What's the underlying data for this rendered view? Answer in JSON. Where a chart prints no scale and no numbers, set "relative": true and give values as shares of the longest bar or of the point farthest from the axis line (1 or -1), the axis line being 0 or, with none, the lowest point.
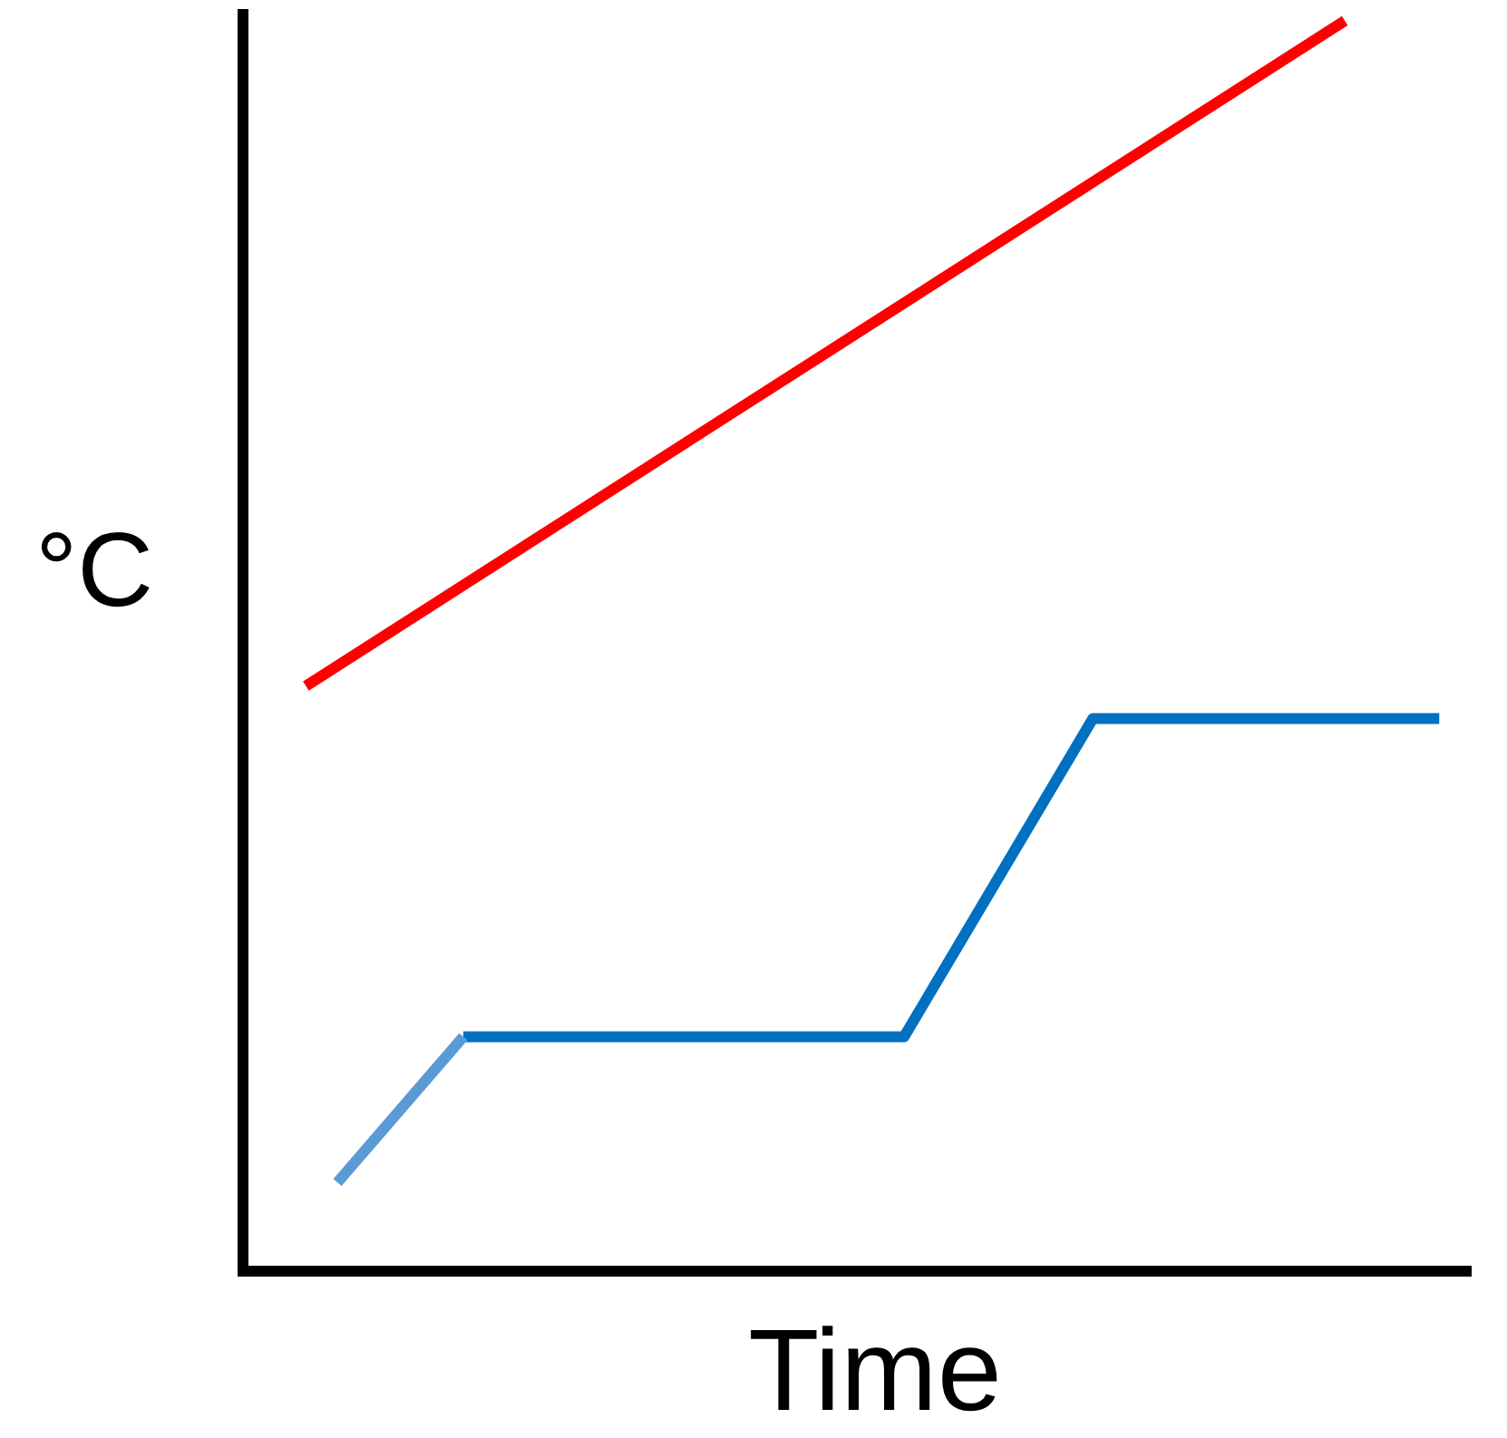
{
  "chart_data": {
    "type": "line",
    "xlabel": "Time",
    "ylabel": "°C",
    "relative": true,
    "tick_labels": false,
    "grid": false,
    "legend": false,
    "marker": "none",
    "line_style": "solid",
    "categories": [
      null,
      null,
      null,
      null,
      null,
      null,
      null,
      null,
      null,
      null,
      null,
      null,
      null,
      null,
      null,
      null,
      null,
      null,
      null,
      null,
      null,
      null,
      null,
      null,
      null,
      null,
      null,
      null,
      null,
      null,
      null,
      null,
      null,
      null,
      null,
      null,
      null,
      null,
      null,
      null
    ],
    "series": [
      {
        "color": "#ff0000",
        "values": [
          null,
          null,
          0.468,
          null,
          null,
          null,
          null,
          null,
          null,
          null,
          null,
          null,
          null,
          null,
          null,
          null,
          null,
          null,
          null,
          null,
          null,
          null,
          null,
          null,
          null,
          null,
          null,
          null,
          null,
          null,
          null,
          null,
          null,
          null,
          null,
          1,
          null,
          null,
          null,
          null
        ]
      },
      {
        "color": "#5b9bd5",
        "values": [
          null,
          null,
          null,
          0.071,
          null,
          null,
          null,
          0.1875,
          null,
          null,
          null,
          null,
          null,
          null,
          null,
          null,
          null,
          null,
          null,
          null,
          null,
          null,
          null,
          null,
          null,
          null,
          null,
          null,
          null,
          null,
          null,
          null,
          null,
          null,
          null,
          null,
          null,
          null,
          null,
          null
        ]
      },
      {
        "color": "#0070c0",
        "values": [
          null,
          null,
          null,
          null,
          null,
          null,
          null,
          0.1875,
          null,
          null,
          null,
          null,
          null,
          null,
          null,
          null,
          null,
          null,
          null,
          null,
          null,
          0.1875,
          null,
          null,
          null,
          null,
          null,
          0.442,
          null,
          null,
          null,
          null,
          null,
          null,
          null,
          null,
          null,
          null,
          0.442,
          null
        ]
      }
    ]
  }
}
